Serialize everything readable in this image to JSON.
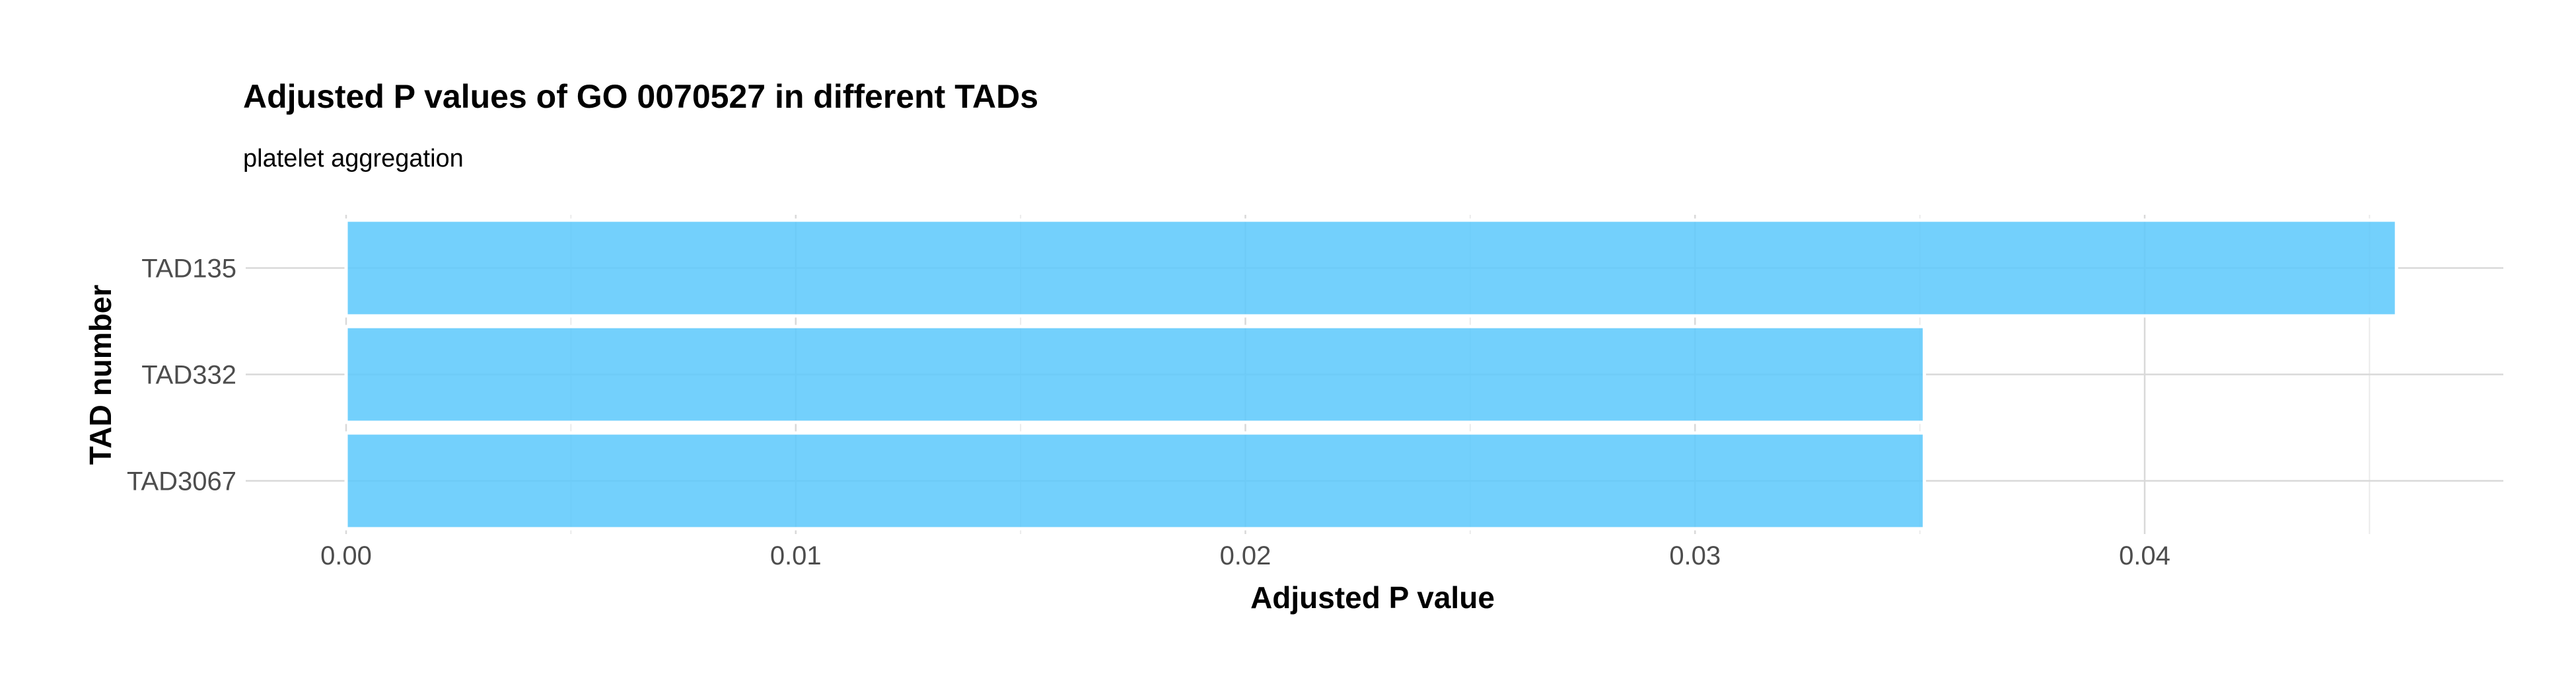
{
  "chart_data": {
    "type": "bar",
    "orientation": "horizontal",
    "title": "Adjusted P values of GO 0070527 in different TADs",
    "subtitle": "platelet aggregation",
    "xlabel": "Adjusted P value",
    "ylabel": "TAD number",
    "categories": [
      "TAD135",
      "TAD332",
      "TAD3067"
    ],
    "values": [
      0.0456,
      0.0351,
      0.0351
    ],
    "xlim": [
      0,
      0.0478
    ],
    "xticks": [
      0.0,
      0.01,
      0.02,
      0.03,
      0.04
    ],
    "xtick_labels": [
      "0.00",
      "0.01",
      "0.02",
      "0.03",
      "0.04"
    ],
    "grid": true,
    "bar_color": "#5bc8fb"
  }
}
